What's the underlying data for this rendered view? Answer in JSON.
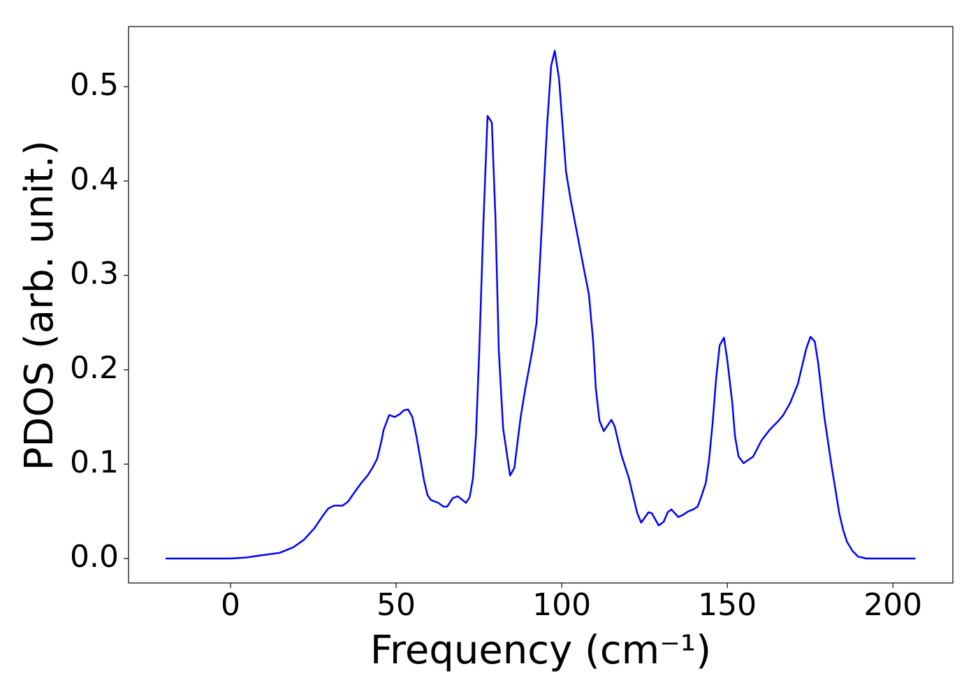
{
  "chart_data": {
    "type": "line",
    "x_label": "Frequency (cm⁻¹)",
    "y_label": "PDOS (arb. unit.)",
    "x": [
      -19.6,
      0,
      4.6,
      8.4,
      14.8,
      19,
      22.2,
      25.3,
      27.8,
      29.5,
      31.2,
      33.8,
      35.4,
      38,
      39.7,
      41.4,
      43,
      44.3,
      45.6,
      46.2,
      47.9,
      49.6,
      51.1,
      52.3,
      53.6,
      54.9,
      56.1,
      57.6,
      58.4,
      59.5,
      60.5,
      62.7,
      64.3,
      65.4,
      67.1,
      68.6,
      71.1,
      72.2,
      73.2,
      74.1,
      75.1,
      76.4,
      77.6,
      78.9,
      80,
      81,
      82.3,
      84.4,
      85.7,
      87.6,
      89,
      91.1,
      92.4,
      93.2,
      95.6,
      96.8,
      97.9,
      99.2,
      101.3,
      102.7,
      103.8,
      106.8,
      108.2,
      109.5,
      110.3,
      111.4,
      112.7,
      115,
      116,
      118,
      120.3,
      122.8,
      124,
      126.2,
      127.2,
      129.3,
      130.8,
      132,
      133.1,
      135.2,
      136.5,
      138.2,
      139.7,
      141,
      142,
      143.5,
      144.5,
      145.6,
      146.6,
      147.7,
      149,
      150,
      151.5,
      152.3,
      153.4,
      154.9,
      157.8,
      160.3,
      162.7,
      165.2,
      166.9,
      169,
      171.3,
      173.8,
      175.1,
      176.4,
      177.4,
      179.3,
      181.4,
      183.8,
      185,
      186.1,
      187.8,
      189.5,
      192,
      206.8
    ],
    "series": [
      {
        "color": "#0000ff",
        "values": [
          0,
          0,
          0.001,
          0.003,
          0.006,
          0.012,
          0.02,
          0.032,
          0.045,
          0.053,
          0.056,
          0.056,
          0.06,
          0.073,
          0.081,
          0.088,
          0.097,
          0.106,
          0.125,
          0.136,
          0.152,
          0.15,
          0.153,
          0.157,
          0.158,
          0.15,
          0.13,
          0.1,
          0.083,
          0.067,
          0.062,
          0.059,
          0.055,
          0.055,
          0.064,
          0.066,
          0.059,
          0.065,
          0.085,
          0.13,
          0.22,
          0.36,
          0.469,
          0.462,
          0.36,
          0.22,
          0.138,
          0.088,
          0.096,
          0.15,
          0.18,
          0.22,
          0.25,
          0.3,
          0.46,
          0.522,
          0.538,
          0.508,
          0.41,
          0.38,
          0.36,
          0.305,
          0.28,
          0.23,
          0.18,
          0.146,
          0.135,
          0.147,
          0.14,
          0.11,
          0.085,
          0.048,
          0.038,
          0.049,
          0.048,
          0.035,
          0.039,
          0.049,
          0.052,
          0.044,
          0.046,
          0.05,
          0.052,
          0.055,
          0.064,
          0.08,
          0.105,
          0.145,
          0.19,
          0.226,
          0.234,
          0.21,
          0.165,
          0.13,
          0.108,
          0.101,
          0.108,
          0.125,
          0.136,
          0.145,
          0.152,
          0.165,
          0.185,
          0.222,
          0.235,
          0.23,
          0.208,
          0.15,
          0.1,
          0.048,
          0.03,
          0.018,
          0.008,
          0.002,
          0,
          0
        ]
      }
    ],
    "xlim": [
      -30.8,
      218.1
    ],
    "ylim": [
      -0.0259,
      0.5637
    ],
    "xticks": [
      0,
      50,
      100,
      150,
      200
    ],
    "yticks": [
      {
        "value": 0,
        "label": "0.0"
      },
      0.1,
      0.2,
      0.3,
      0.4,
      0.5
    ],
    "grid": false
  }
}
